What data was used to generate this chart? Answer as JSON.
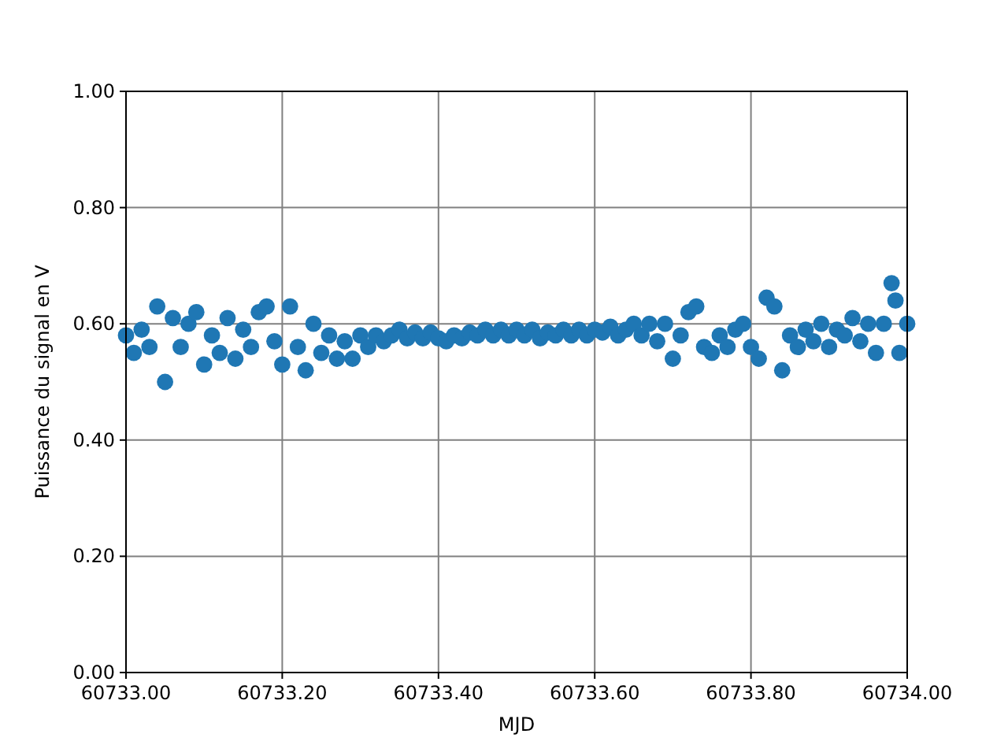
{
  "chart_data": {
    "type": "scatter",
    "xlabel": "MJD",
    "ylabel": "Puissance du signal en V",
    "x": [
      60733.0,
      60733.01,
      60733.02,
      60733.03,
      60733.04,
      60733.05,
      60733.06,
      60733.07,
      60733.08,
      60733.09,
      60733.1,
      60733.11,
      60733.12,
      60733.13,
      60733.14,
      60733.15,
      60733.16,
      60733.17,
      60733.18,
      60733.19,
      60733.2,
      60733.21,
      60733.22,
      60733.23,
      60733.24,
      60733.25,
      60733.26,
      60733.27,
      60733.28,
      60733.29,
      60733.3,
      60733.31,
      60733.32,
      60733.33,
      60733.34,
      60733.35,
      60733.36,
      60733.37,
      60733.38,
      60733.39,
      60733.4,
      60733.41,
      60733.42,
      60733.43,
      60733.44,
      60733.45,
      60733.46,
      60733.47,
      60733.48,
      60733.49,
      60733.5,
      60733.51,
      60733.52,
      60733.53,
      60733.54,
      60733.55,
      60733.56,
      60733.57,
      60733.58,
      60733.59,
      60733.6,
      60733.61,
      60733.62,
      60733.63,
      60733.64,
      60733.65,
      60733.66,
      60733.67,
      60733.68,
      60733.69,
      60733.7,
      60733.71,
      60733.72,
      60733.73,
      60733.74,
      60733.75,
      60733.76,
      60733.77,
      60733.78,
      60733.79,
      60733.8,
      60733.81,
      60733.82,
      60733.83,
      60733.84,
      60733.85,
      60733.86,
      60733.87,
      60733.88,
      60733.89,
      60733.9,
      60733.91,
      60733.92,
      60733.93,
      60733.94,
      60733.95,
      60733.96,
      60733.97,
      60733.98,
      60733.985,
      60733.99,
      60734.0
    ],
    "series": [
      {
        "color": "#1f77b4",
        "values": [
          0.58,
          0.55,
          0.59,
          0.56,
          0.63,
          0.5,
          0.61,
          0.56,
          0.6,
          0.62,
          0.53,
          0.58,
          0.55,
          0.61,
          0.54,
          0.59,
          0.56,
          0.62,
          0.63,
          0.57,
          0.53,
          0.63,
          0.56,
          0.52,
          0.6,
          0.55,
          0.58,
          0.54,
          0.57,
          0.54,
          0.58,
          0.56,
          0.58,
          0.57,
          0.58,
          0.59,
          0.575,
          0.585,
          0.575,
          0.585,
          0.575,
          0.57,
          0.58,
          0.575,
          0.585,
          0.58,
          0.59,
          0.58,
          0.59,
          0.58,
          0.59,
          0.58,
          0.59,
          0.575,
          0.585,
          0.58,
          0.59,
          0.58,
          0.59,
          0.58,
          0.59,
          0.585,
          0.595,
          0.58,
          0.59,
          0.6,
          0.58,
          0.6,
          0.57,
          0.6,
          0.54,
          0.58,
          0.62,
          0.63,
          0.56,
          0.55,
          0.58,
          0.56,
          0.59,
          0.6,
          0.56,
          0.54,
          0.645,
          0.63,
          0.52,
          0.58,
          0.56,
          0.59,
          0.57,
          0.6,
          0.56,
          0.59,
          0.58,
          0.61,
          0.57,
          0.6,
          0.55,
          0.6,
          0.67,
          0.64,
          0.55,
          0.6
        ]
      }
    ],
    "xlim": [
      60733,
      60734
    ],
    "xticks": [
      {
        "value": 60733,
        "label": "60733.00"
      },
      {
        "value": 60733.2,
        "label": "60733.20"
      },
      {
        "value": 60733.4,
        "label": "60733.40"
      },
      {
        "value": 60733.6,
        "label": "60733.60"
      },
      {
        "value": 60733.8,
        "label": "60733.80"
      },
      {
        "value": 60734,
        "label": "60734.00"
      }
    ],
    "ylim": [
      0,
      1
    ],
    "yticks": [
      {
        "value": 0,
        "label": "0.00"
      },
      {
        "value": 0.2,
        "label": "0.20"
      },
      {
        "value": 0.4,
        "label": "0.40"
      },
      {
        "value": 0.6,
        "label": "0.60"
      },
      {
        "value": 0.8,
        "label": "0.80"
      },
      {
        "value": 1,
        "label": "1.00"
      }
    ],
    "grid": true,
    "marker": "circle"
  }
}
